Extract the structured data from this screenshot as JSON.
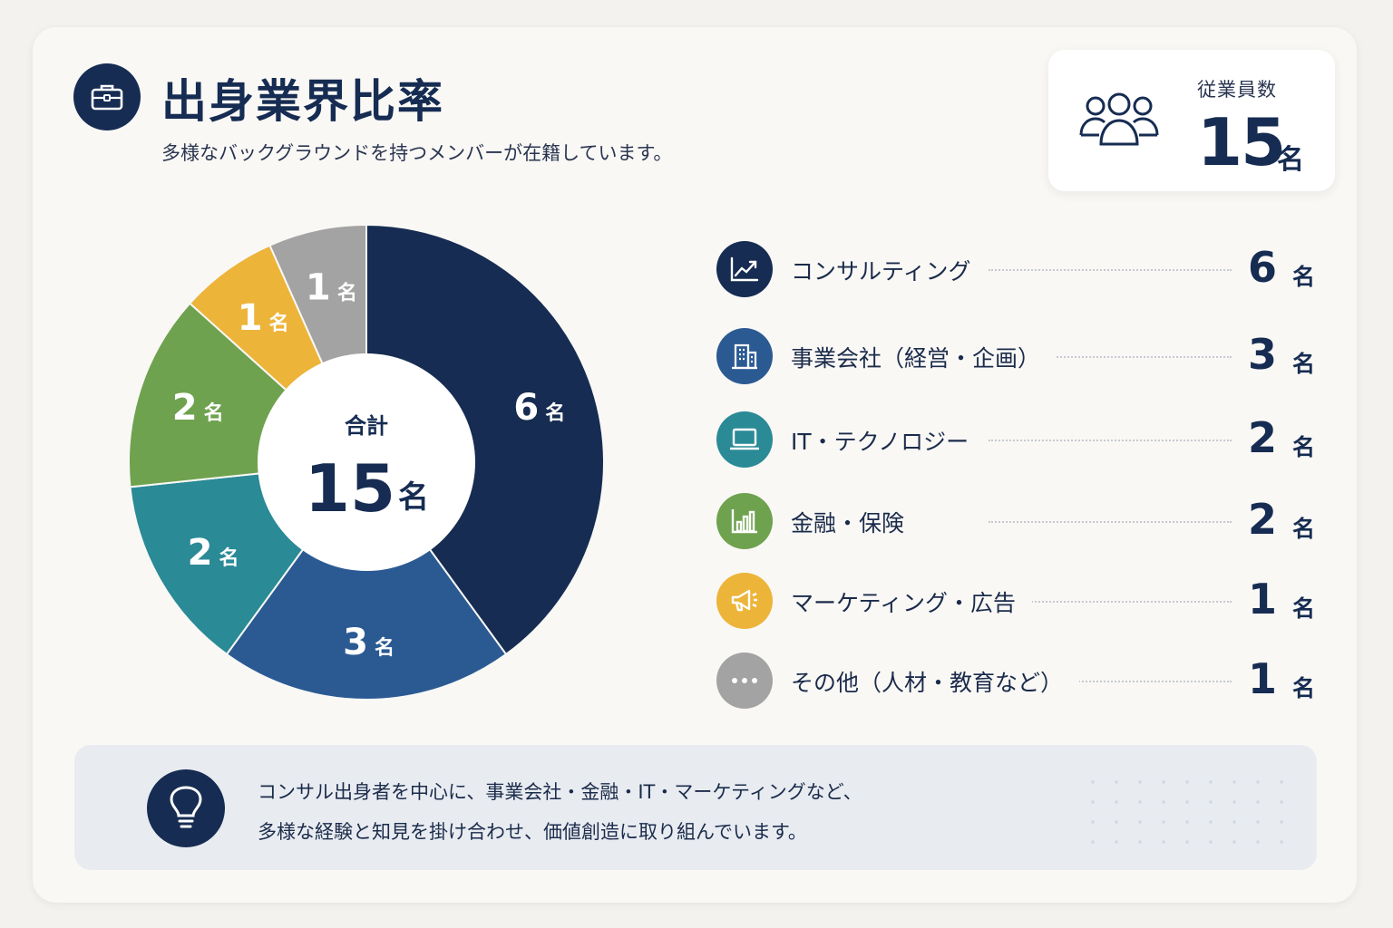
{
  "header": {
    "title": "出身業界比率",
    "subtitle": "多様なバックグラウンドを持つメンバーが在籍しています。",
    "icon": "briefcase-icon"
  },
  "employee_box": {
    "label": "従業員数",
    "value": "15",
    "unit": "名",
    "icon": "people-icon"
  },
  "chart_data": {
    "type": "pie",
    "donut": true,
    "center_label": "合計",
    "center_value": "15",
    "center_unit": "名",
    "unit": "名",
    "categories": [
      "コンサルティング",
      "事業会社（経営・企画）",
      "IT・テクノロジー",
      "金融・保険",
      "マーケティング・広告",
      "その他（人材・教育など）"
    ],
    "values": [
      6,
      3,
      2,
      2,
      1,
      1
    ],
    "colors": [
      "#162c52",
      "#2b5a93",
      "#2a8a96",
      "#6fa24f",
      "#edb43a",
      "#a3a3a3"
    ],
    "icons": [
      "line-chart-icon",
      "building-icon",
      "laptop-icon",
      "bar-chart-icon",
      "megaphone-icon",
      "more-dots-icon"
    ]
  },
  "note": {
    "icon": "lightbulb-icon",
    "line1": "コンサル出身者を中心に、事業会社・金融・IT・マーケティングなど、",
    "line2": "多様な経験と知見を掛け合わせ、価値創造に取り組んでいます。"
  }
}
